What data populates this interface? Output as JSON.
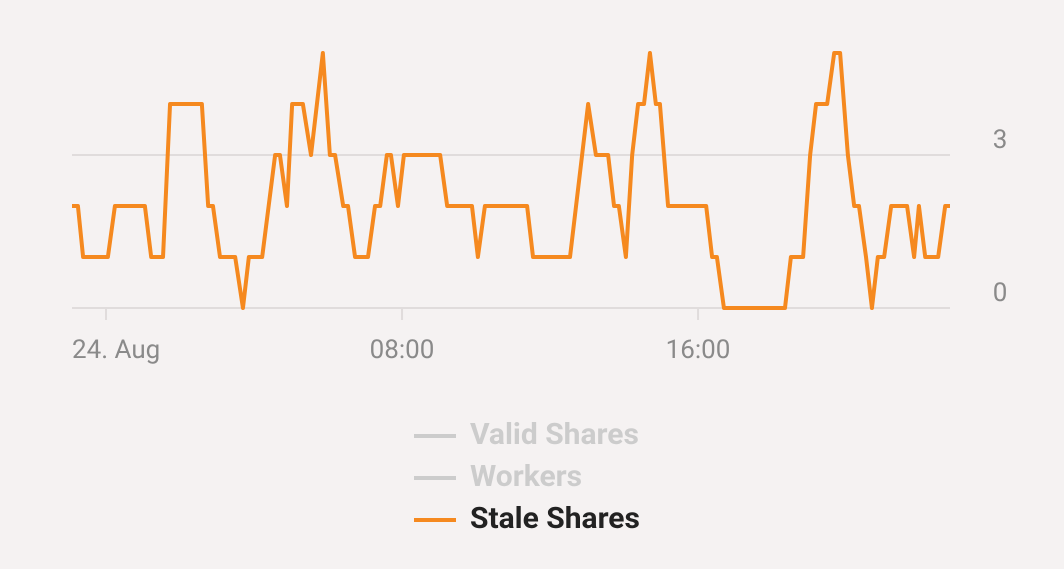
{
  "chart_data": {
    "type": "line",
    "x": [
      -0.92,
      -0.76,
      -0.62,
      0.05,
      0.24,
      1.05,
      1.22,
      1.54,
      1.73,
      2.59,
      2.76,
      2.89,
      3.08,
      3.49,
      3.7,
      3.86,
      4.22,
      4.57,
      4.7,
      4.89,
      5.03,
      5.32,
      5.54,
      5.86,
      6.05,
      6.19,
      6.41,
      6.54,
      6.73,
      7.08,
      7.27,
      7.41,
      7.59,
      7.7,
      7.89,
      8.05,
      9.03,
      9.22,
      9.89,
      10.05,
      10.24,
      11.38,
      11.54,
      12.54,
      13.03,
      13.24,
      13.57,
      13.73,
      13.86,
      14.05,
      14.22,
      14.38,
      14.54,
      14.7,
      14.86,
      14.97,
      15.19,
      16.22,
      16.38,
      16.51,
      16.7,
      18.35,
      18.51,
      18.84,
      19.03,
      19.19,
      19.49,
      19.68,
      19.84,
      20.05,
      20.22,
      20.35,
      20.54,
      20.7,
      20.86,
      21.03,
      21.22,
      21.65,
      21.84,
      21.97,
      22.14,
      22.49,
      22.68,
      22.81
    ],
    "series": [
      {
        "name": "Valid Shares",
        "color": "#cccccc",
        "hidden": true
      },
      {
        "name": "Workers",
        "color": "#cccccc",
        "hidden": true
      },
      {
        "name": "Stale Shares",
        "color": "#f5891f",
        "hidden": false,
        "values": [
          2,
          2,
          1,
          1,
          2,
          2,
          1,
          1,
          4,
          4,
          2,
          2,
          1,
          1,
          0,
          1,
          1,
          3,
          3,
          2,
          4,
          4,
          3,
          5,
          3,
          3,
          2,
          2,
          1,
          1,
          2,
          2,
          3,
          3,
          2,
          3,
          3,
          2,
          2,
          1,
          2,
          2,
          1,
          1,
          4,
          3,
          3,
          2,
          2,
          1,
          3,
          4,
          4,
          5,
          4,
          4,
          2,
          2,
          1,
          1,
          0,
          0,
          1,
          1,
          3,
          4,
          4,
          5,
          5,
          3,
          2,
          2,
          1,
          0,
          1,
          1,
          2,
          2,
          1,
          2,
          1,
          1,
          2,
          2
        ]
      }
    ],
    "xlim": [
      -0.92,
      22.81
    ],
    "xticks": [
      {
        "value": 0,
        "label": "24. Aug"
      },
      {
        "value": 8,
        "label": "08:00"
      },
      {
        "value": 16,
        "label": "16:00"
      }
    ],
    "ylim": [
      0,
      5
    ],
    "yticks": [
      0,
      3
    ],
    "grid": true
  }
}
